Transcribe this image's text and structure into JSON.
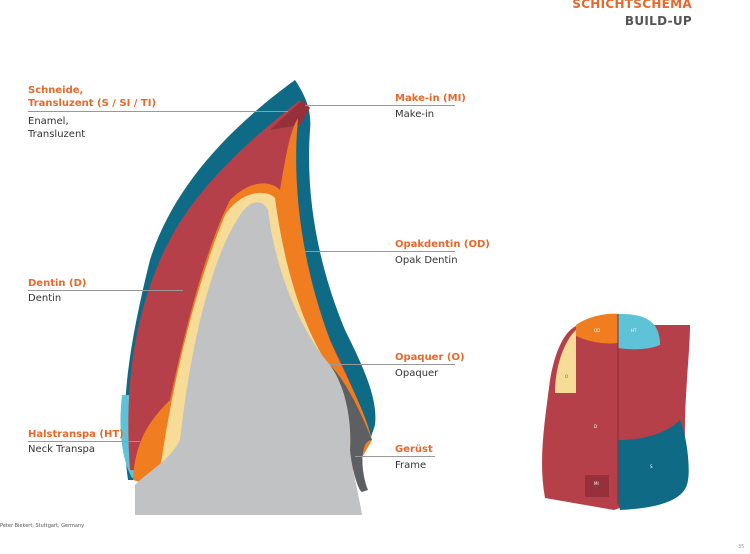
{
  "header": {
    "title": "SCHICHTSCHEMA",
    "subtitle": "BUILD-UP"
  },
  "labels_left": [
    {
      "name": "Schneide,\nTransluzent (S / SI / TI)",
      "translation": "Enamel,\nTransluzent"
    },
    {
      "name": "Dentin (D)",
      "translation": "Dentin"
    },
    {
      "name": "Halstranspa (HT)",
      "translation": "Neck Transpa"
    }
  ],
  "labels_right": [
    {
      "name": "Make-in (MI)",
      "translation": "Make-in"
    },
    {
      "name": "Opakdentin (OD)",
      "translation": "Opak Dentin"
    },
    {
      "name": "Opaquer (O)",
      "translation": "Opaquer"
    },
    {
      "name": "Gerüst",
      "translation": "Frame"
    }
  ],
  "front_view": {
    "zones": [
      "OD",
      "HT",
      "O",
      "D",
      "S",
      "MI"
    ]
  },
  "credit": "Peter Biekert, Stuttgart, Germany",
  "page_number": "35",
  "colors": {
    "accent": "#e8672a",
    "enamel": "#0f6a86",
    "dentin": "#b5404a",
    "opakdentin": "#f07d1f",
    "opaquer": "#f7dc98",
    "frame": "#c1c2c4",
    "neck": "#5ec3d6",
    "makein": "#96303a"
  }
}
